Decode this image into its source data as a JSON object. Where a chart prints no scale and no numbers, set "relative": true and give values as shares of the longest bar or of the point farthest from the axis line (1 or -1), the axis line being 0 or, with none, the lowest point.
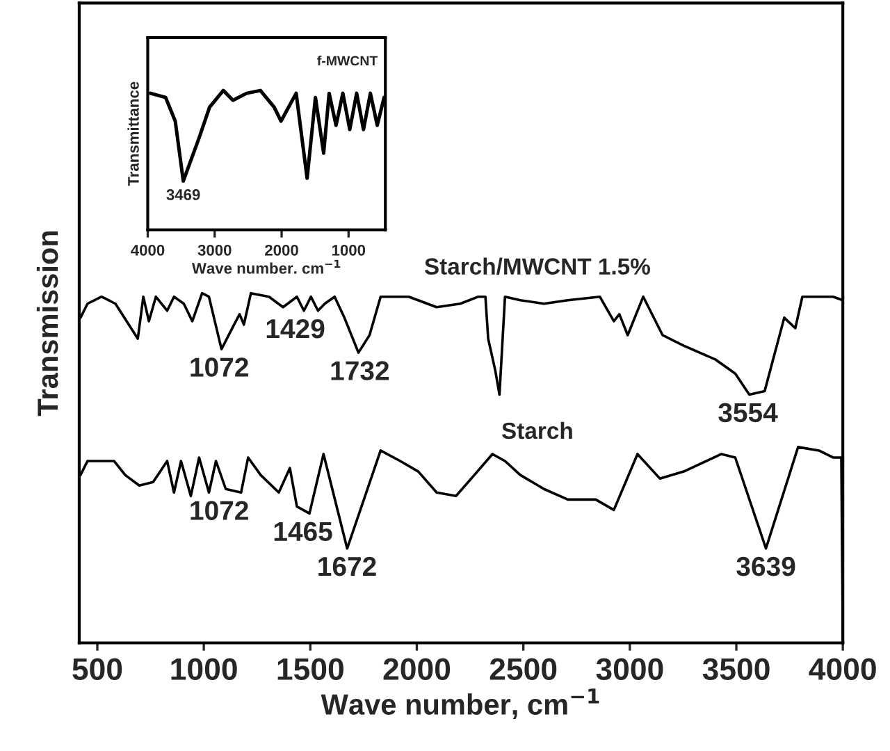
{
  "chart_data": [
    {
      "type": "line",
      "relative": true,
      "xlabel": "Wave number, cm$^{−1}$",
      "ylabel": "Transmission",
      "xlim": [
        415,
        4000
      ],
      "xticks": [
        500,
        1000,
        1500,
        2000,
        2500,
        3000,
        3500,
        4000
      ],
      "tick_labels": "x",
      "series": [
        {
          "name": "Starch/MWCNT 1.5%",
          "color": "#000000",
          "x": [
            421,
            454,
            520,
            585,
            690,
            716,
            742,
            775,
            828,
            860,
            906,
            946,
            992,
            1024,
            1083,
            1142,
            1168,
            1188,
            1221,
            1306,
            1372,
            1437,
            1470,
            1503,
            1536,
            1568,
            1614,
            1660,
            1726,
            1778,
            1830,
            1962,
            2093,
            2204,
            2289,
            2322,
            2335,
            2368,
            2388,
            2414,
            2486,
            2597,
            2709,
            2859,
            2925,
            2951,
            2990,
            3063,
            3154,
            3253,
            3403,
            3495,
            3561,
            3633,
            3725,
            3777,
            3810,
            3862,
            3954,
            4000
          ],
          "values": [
            0.93,
            0.97,
            0.99,
            0.97,
            0.87,
            0.99,
            0.92,
            0.99,
            0.95,
            0.99,
            0.97,
            0.92,
            1.0,
            0.99,
            0.84,
            0.91,
            0.94,
            0.91,
            1.0,
            0.99,
            0.96,
            0.99,
            0.95,
            0.99,
            0.95,
            0.97,
            0.99,
            0.93,
            0.83,
            0.88,
            0.99,
            0.99,
            0.96,
            0.97,
            0.99,
            0.99,
            0.87,
            0.78,
            0.71,
            0.99,
            0.98,
            0.97,
            0.98,
            0.99,
            0.92,
            0.94,
            0.88,
            0.99,
            0.88,
            0.85,
            0.81,
            0.77,
            0.71,
            0.72,
            0.93,
            0.9,
            0.99,
            0.99,
            0.99,
            0.98
          ]
        },
        {
          "name": "Starch",
          "color": "#000000",
          "x": [
            421,
            454,
            520,
            579,
            631,
            697,
            762,
            828,
            860,
            893,
            939,
            978,
            1024,
            1057,
            1103,
            1175,
            1208,
            1267,
            1352,
            1404,
            1437,
            1496,
            1562,
            1673,
            1830,
            1922,
            2007,
            2093,
            2184,
            2270,
            2355,
            2414,
            2486,
            2597,
            2709,
            2840,
            2925,
            3036,
            3141,
            3253,
            3430,
            3495,
            3639,
            3790,
            3888,
            3954,
            3993,
            4000
          ],
          "values": [
            0.48,
            0.52,
            0.52,
            0.52,
            0.48,
            0.45,
            0.46,
            0.52,
            0.43,
            0.52,
            0.42,
            0.53,
            0.43,
            0.52,
            0.44,
            0.43,
            0.53,
            0.48,
            0.43,
            0.5,
            0.39,
            0.37,
            0.54,
            0.27,
            0.55,
            0.52,
            0.49,
            0.43,
            0.42,
            0.48,
            0.54,
            0.52,
            0.48,
            0.44,
            0.41,
            0.41,
            0.38,
            0.54,
            0.47,
            0.49,
            0.54,
            0.53,
            0.27,
            0.56,
            0.55,
            0.53,
            0.53,
            0.01
          ]
        }
      ],
      "annotations": [
        {
          "text": "1072",
          "x": 1072,
          "y": 0.84
        },
        {
          "text": "1429",
          "x": 1429,
          "y": 0.95
        },
        {
          "text": "1732",
          "x": 1732,
          "y": 0.83
        },
        {
          "text": "3554",
          "x": 3554,
          "y": 0.71
        },
        {
          "text": "1072",
          "x": 1072,
          "y": 0.43
        },
        {
          "text": "1465",
          "x": 1465,
          "y": 0.37
        },
        {
          "text": "1672",
          "x": 1672,
          "y": 0.27
        },
        {
          "text": "3639",
          "x": 3639,
          "y": 0.27
        }
      ]
    },
    {
      "type": "line",
      "relative": true,
      "xlabel": "Wave number. cm$^{−1}$",
      "ylabel": "Transmittance",
      "xlim": [
        4000,
        450
      ],
      "xticks": [
        4000,
        3000,
        2000,
        1000
      ],
      "tick_labels": "x",
      "series": [
        {
          "name": "f-MWCNT",
          "color": "#000000",
          "x": [
            3959,
            3733,
            3589,
            3469,
            3240,
            3076,
            2871,
            2727,
            2522,
            2317,
            2111,
            2009,
            1783,
            1619,
            1495,
            1372,
            1290,
            1187,
            1085,
            982,
            879,
            777,
            674,
            571,
            469
          ],
          "values": [
            0.98,
            0.95,
            0.78,
            0.35,
            0.65,
            0.88,
            1.0,
            0.93,
            0.98,
            1.0,
            0.88,
            0.78,
            0.98,
            0.37,
            0.95,
            0.55,
            0.98,
            0.75,
            0.98,
            0.72,
            0.98,
            0.72,
            0.98,
            0.75,
            0.95
          ]
        }
      ],
      "annotations": [
        {
          "text": "3469",
          "x": 3469,
          "y": 0.35
        }
      ]
    }
  ]
}
